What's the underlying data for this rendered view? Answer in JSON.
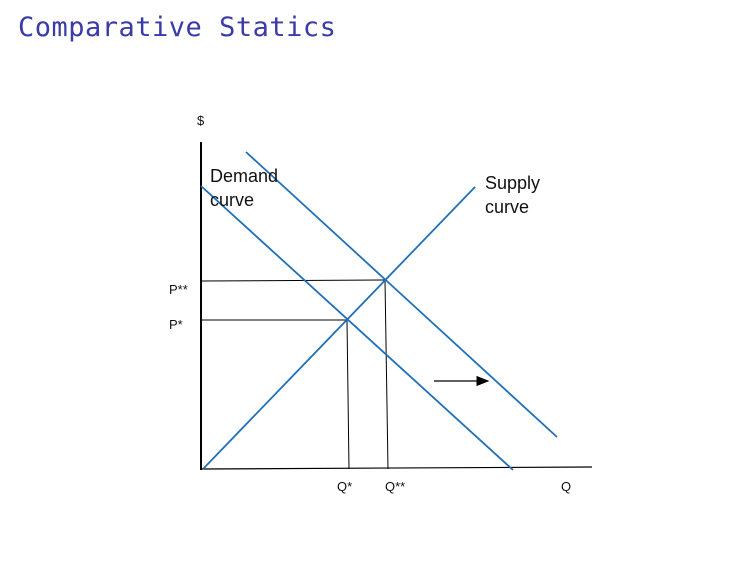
{
  "title": "Comparative Statics",
  "axes": {
    "y_label": "$",
    "x_label": "Q"
  },
  "prices": {
    "original": "P*",
    "new": "P**"
  },
  "quantities": {
    "original": "Q*",
    "new": "Q**"
  },
  "demand_label": [
    "Demand",
    "curve"
  ],
  "supply_label": [
    "Supply",
    "curve"
  ],
  "colors": {
    "curve": "#2070b8",
    "axis": "#000000",
    "title": "#3a3aa8"
  },
  "shift_arrow": {
    "direction": "right"
  }
}
